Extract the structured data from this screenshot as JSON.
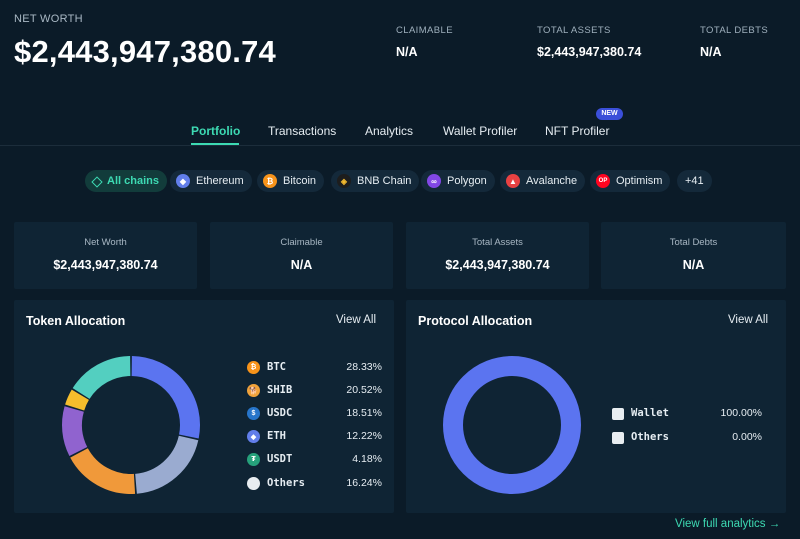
{
  "header": {
    "net_worth_label": "NET WORTH",
    "net_worth_value": "$2,443,947,380.74",
    "stats": [
      {
        "label": "CLAIMABLE",
        "value": "N/A"
      },
      {
        "label": "TOTAL ASSETS",
        "value": "$2,443,947,380.74"
      },
      {
        "label": "TOTAL DEBTS",
        "value": "N/A"
      }
    ]
  },
  "tabs": [
    {
      "label": "Portfolio",
      "active": true
    },
    {
      "label": "Transactions"
    },
    {
      "label": "Analytics"
    },
    {
      "label": "Wallet Profiler"
    },
    {
      "label": "NFT Profiler",
      "badge": "NEW"
    }
  ],
  "chains": [
    {
      "label": "All chains",
      "icon": "all-chains-icon",
      "active": true
    },
    {
      "label": "Ethereum",
      "icon": "ethereum-icon",
      "color": "#627eea"
    },
    {
      "label": "Bitcoin",
      "icon": "bitcoin-icon",
      "color": "#f7931a"
    },
    {
      "label": "BNB Chain",
      "icon": "bnb-icon",
      "color": "#f3ba2f"
    },
    {
      "label": "Polygon",
      "icon": "polygon-icon",
      "color": "#8247e5"
    },
    {
      "label": "Avalanche",
      "icon": "avalanche-icon",
      "color": "#e84142"
    },
    {
      "label": "Optimism",
      "icon": "optimism-icon",
      "color": "#ff0420"
    },
    {
      "label": "+41"
    }
  ],
  "cards": [
    {
      "label": "Net Worth",
      "value": "$2,443,947,380.74"
    },
    {
      "label": "Claimable",
      "value": "N/A"
    },
    {
      "label": "Total Assets",
      "value": "$2,443,947,380.74"
    },
    {
      "label": "Total Debts",
      "value": "N/A"
    }
  ],
  "token_allocation": {
    "title": "Token Allocation",
    "link": "View All",
    "items": [
      {
        "name": "BTC",
        "pct": "28.33%",
        "value": 28.33,
        "color": "#5b74f0",
        "icon_color": "#f7931a",
        "icon": "bitcoin-icon"
      },
      {
        "name": "SHIB",
        "pct": "20.52%",
        "value": 20.52,
        "color": "#9aabd0",
        "icon_color": "#f0a23b",
        "icon": "shib-icon"
      },
      {
        "name": "USDC",
        "pct": "18.51%",
        "value": 18.51,
        "color": "#f0993a",
        "icon_color": "#2775ca",
        "icon": "usdc-icon"
      },
      {
        "name": "ETH",
        "pct": "12.22%",
        "value": 12.22,
        "color": "#9063cf",
        "icon_color": "#627eea",
        "icon": "ethereum-icon"
      },
      {
        "name": "USDT",
        "pct": "4.18%",
        "value": 4.18,
        "color": "#f5be2c",
        "icon_color": "#26a17b",
        "icon": "tether-icon"
      },
      {
        "name": "Others",
        "pct": "16.24%",
        "value": 16.24,
        "color": "#53cfc0",
        "icon_color": "#e8edf1",
        "icon": "others-icon"
      }
    ]
  },
  "protocol_allocation": {
    "title": "Protocol Allocation",
    "link": "View All",
    "items": [
      {
        "name": "Wallet",
        "pct": "100.00%",
        "value": 100,
        "color": "#5b74f0",
        "icon": "wallet-icon"
      },
      {
        "name": "Others",
        "pct": "0.00%",
        "value": 0,
        "color": "#e8edf1",
        "icon": "others-icon"
      }
    ]
  },
  "footer": {
    "link": "View full analytics",
    "arrow": "→"
  }
}
